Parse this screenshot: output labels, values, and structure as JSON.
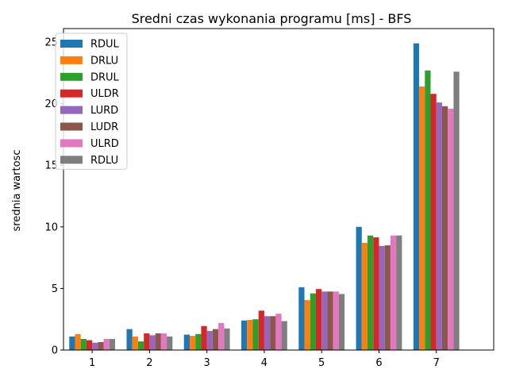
{
  "chart_data": {
    "type": "bar",
    "title": "Sredni czas wykonania programu [ms] - BFS",
    "xlabel": "",
    "ylabel": "srednia wartosc",
    "ylim": [
      0,
      26.1
    ],
    "yticks": [
      0,
      5,
      10,
      15,
      20,
      25
    ],
    "categories": [
      "1",
      "2",
      "3",
      "4",
      "5",
      "6",
      "7"
    ],
    "legend_position": "top-left",
    "grid": false,
    "series": [
      {
        "name": "RDUL",
        "color": "#1f77b4",
        "values": [
          1.1,
          1.7,
          1.25,
          2.4,
          5.1,
          10.0,
          24.9
        ]
      },
      {
        "name": "DRLU",
        "color": "#ff7f0e",
        "values": [
          1.3,
          1.1,
          1.15,
          2.45,
          4.05,
          8.7,
          21.4
        ]
      },
      {
        "name": "DRUL",
        "color": "#2ca02c",
        "values": [
          0.9,
          0.7,
          1.3,
          2.5,
          4.6,
          9.3,
          22.7
        ]
      },
      {
        "name": "ULDR",
        "color": "#d62728",
        "values": [
          0.8,
          1.35,
          1.95,
          3.2,
          4.95,
          9.15,
          20.8
        ]
      },
      {
        "name": "LURD",
        "color": "#9467bd",
        "values": [
          0.6,
          1.2,
          1.55,
          2.75,
          4.75,
          8.45,
          20.1
        ]
      },
      {
        "name": "LUDR",
        "color": "#8c564b",
        "values": [
          0.65,
          1.35,
          1.7,
          2.75,
          4.75,
          8.5,
          19.8
        ]
      },
      {
        "name": "ULRD",
        "color": "#e377c2",
        "values": [
          0.9,
          1.35,
          2.2,
          2.95,
          4.75,
          9.3,
          19.6
        ]
      },
      {
        "name": "RDLU",
        "color": "#7f7f7f",
        "values": [
          0.9,
          1.1,
          1.75,
          2.35,
          4.55,
          9.3,
          22.6
        ]
      }
    ]
  }
}
